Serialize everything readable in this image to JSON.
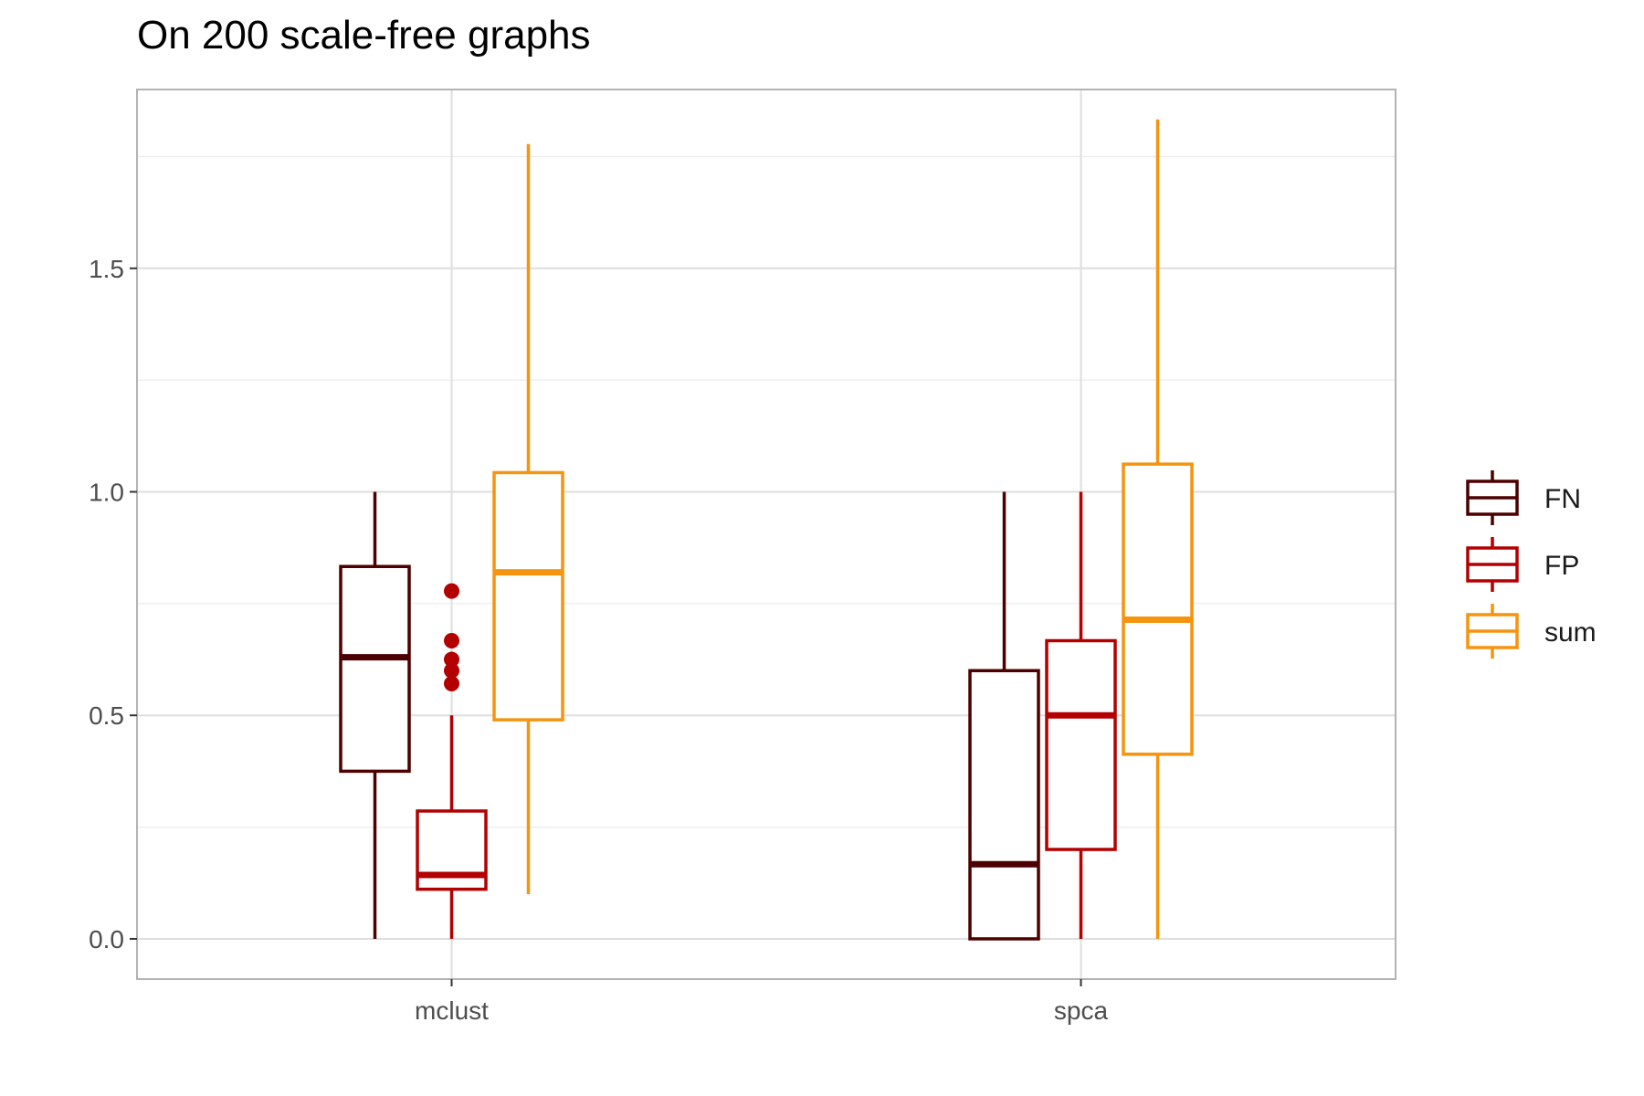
{
  "chart_data": {
    "type": "boxplot",
    "title": "On 200 scale-free graphs",
    "xlabel": "",
    "ylabel": "",
    "categories": [
      "mclust",
      "spca"
    ],
    "ylim": [
      -0.09,
      1.9
    ],
    "yticks": [
      0.0,
      0.5,
      1.0,
      1.5
    ],
    "ytick_labels": [
      "0.0",
      "0.5",
      "1.0",
      "1.5"
    ],
    "grid": true,
    "legend_position": "right",
    "series": [
      {
        "name": "FN",
        "color": "#4d0000",
        "boxes": [
          {
            "category": "mclust",
            "min": 0.0,
            "q1": 0.375,
            "median": 0.63,
            "q3": 0.833,
            "max": 1.0,
            "outliers": []
          },
          {
            "category": "spca",
            "min": 0.0,
            "q1": 0.0,
            "median": 0.167,
            "q3": 0.6,
            "max": 1.0,
            "outliers": []
          }
        ]
      },
      {
        "name": "FP",
        "color": "#b30000",
        "boxes": [
          {
            "category": "mclust",
            "min": 0.0,
            "q1": 0.111,
            "median": 0.143,
            "q3": 0.286,
            "max": 0.5,
            "outliers": [
              0.571,
              0.6,
              0.625,
              0.667,
              0.778
            ]
          },
          {
            "category": "spca",
            "min": 0.0,
            "q1": 0.2,
            "median": 0.5,
            "q3": 0.667,
            "max": 1.0,
            "outliers": []
          }
        ]
      },
      {
        "name": "sum",
        "color": "#f5940f",
        "boxes": [
          {
            "category": "mclust",
            "min": 0.1,
            "q1": 0.49,
            "median": 0.82,
            "q3": 1.043,
            "max": 1.778,
            "outliers": []
          },
          {
            "category": "spca",
            "min": 0.0,
            "q1": 0.413,
            "median": 0.714,
            "q3": 1.062,
            "max": 1.833,
            "outliers": []
          }
        ]
      }
    ]
  }
}
